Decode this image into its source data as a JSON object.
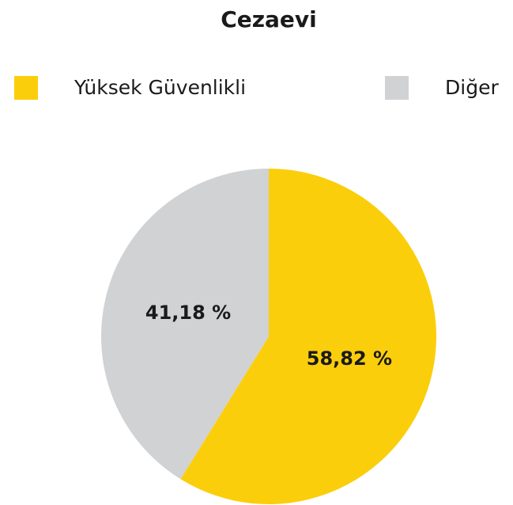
{
  "chart_data": {
    "type": "pie",
    "title": "Cezaevi",
    "categories": [
      "Yüksek Güvenlikli",
      "Diğer"
    ],
    "values": [
      58.82,
      41.18
    ],
    "value_labels": [
      "58,82 %",
      "41,18 %"
    ],
    "colors": [
      "#fbce0c",
      "#d1d2d4"
    ],
    "legend": "top"
  }
}
